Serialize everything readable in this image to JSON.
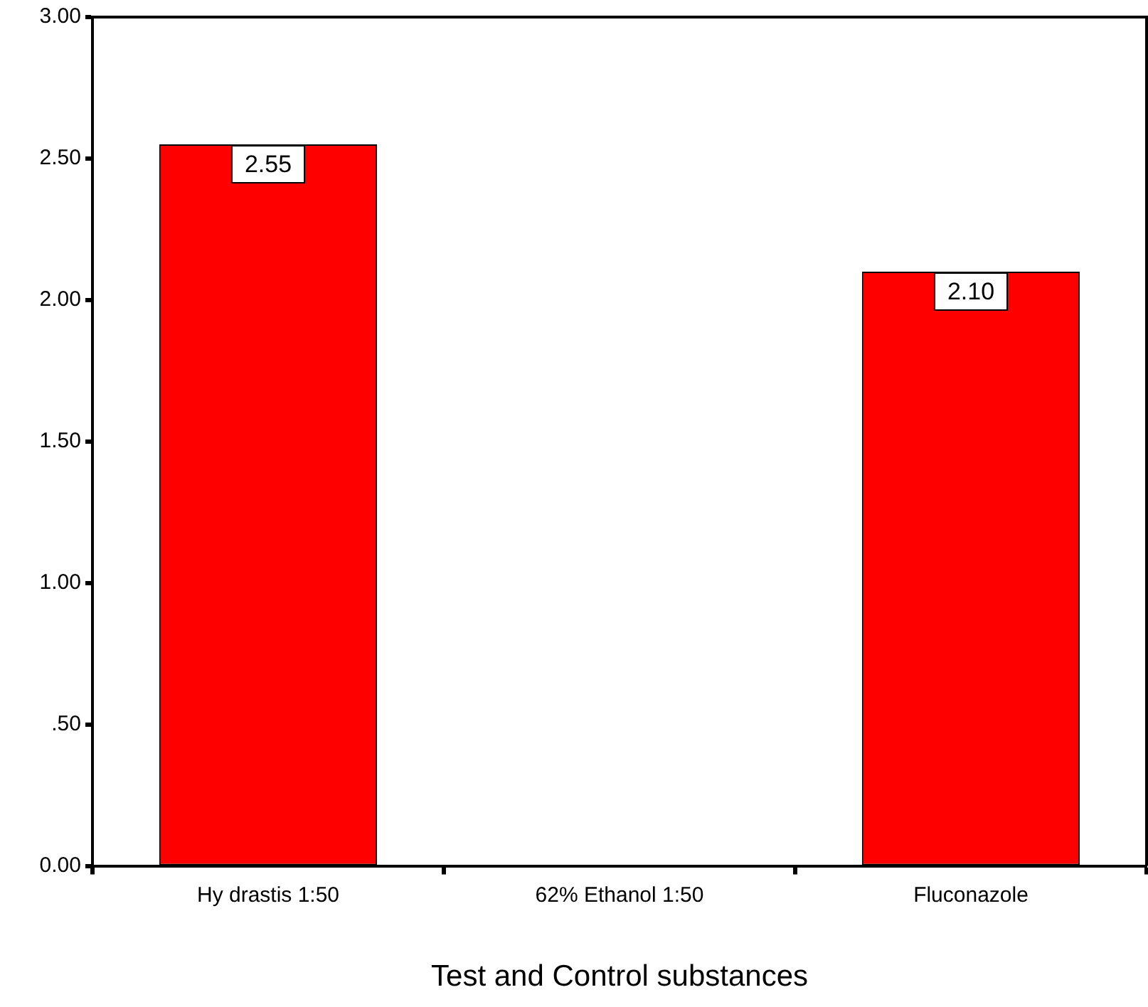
{
  "chart_data": {
    "type": "bar",
    "xlabel": "Test and Control substances",
    "categories": [
      "Hy drastis 1:50",
      "62% Ethanol 1:50",
      "Fluconazole"
    ],
    "values": [
      2.55,
      0,
      2.1
    ],
    "color": "#ff0000",
    "value_labels": [
      "2.55",
      null,
      "2.10"
    ],
    "ylim": [
      0,
      3
    ],
    "yticks": [
      {
        "value": 0,
        "label": "0.00"
      },
      {
        "value": 0.5,
        "label": ".50"
      },
      {
        "value": 1,
        "label": "1.00"
      },
      {
        "value": 1.5,
        "label": "1.50"
      },
      {
        "value": 2,
        "label": "2.00"
      },
      {
        "value": 2.5,
        "label": "2.50"
      },
      {
        "value": 3,
        "label": "3.00"
      }
    ],
    "legend": false
  }
}
